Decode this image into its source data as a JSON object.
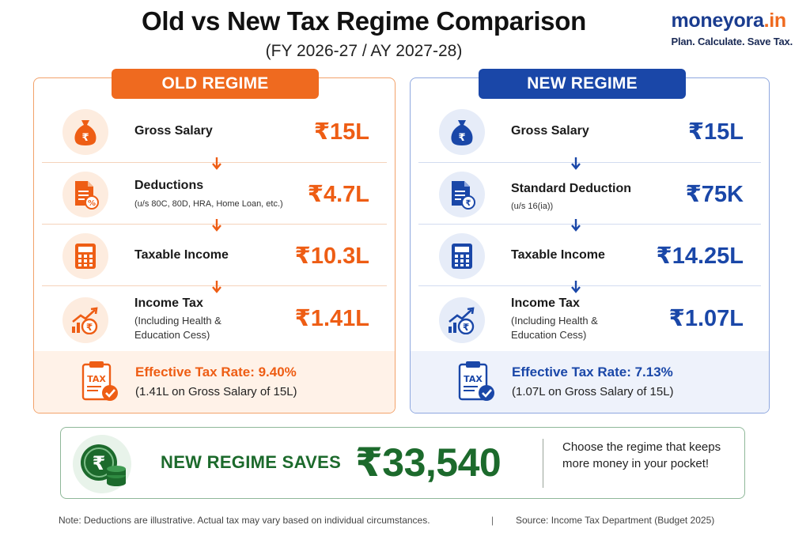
{
  "header": {
    "title": "Old vs New Tax Regime Comparison",
    "subtitle": "(FY 2026-27 / AY 2027-28)"
  },
  "brand": {
    "name": "moneyora",
    "tld": ".in",
    "tagline": "Plan. Calculate. Save Tax."
  },
  "old_regime": {
    "header": "OLD REGIME",
    "rows": [
      {
        "icon": "money-bag-icon",
        "label": "Gross Salary",
        "sub": "",
        "value": "₹15L"
      },
      {
        "icon": "document-percent-icon",
        "label": "Deductions",
        "sub": "(u/s 80C, 80D, HRA, Home Loan, etc.)",
        "value": "₹4.7L"
      },
      {
        "icon": "calculator-icon",
        "label": "Taxable Income",
        "sub": "",
        "value": "₹10.3L"
      },
      {
        "icon": "growth-chart-rupee-icon",
        "label": "Income Tax",
        "sub_line1": "(Including Health &",
        "sub_line2": "Education Cess)",
        "value": "₹1.41L"
      }
    ],
    "effective": {
      "icon": "tax-clipboard-icon",
      "rate": "Effective Tax Rate: 9.40%",
      "note": "(1.41L on Gross Salary of 15L)"
    }
  },
  "new_regime": {
    "header": "NEW REGIME",
    "rows": [
      {
        "icon": "money-bag-icon",
        "label": "Gross Salary",
        "sub": "",
        "value": "₹15L"
      },
      {
        "icon": "document-rupee-icon",
        "label": "Standard Deduction",
        "sub": "(u/s 16(ia))",
        "value": "₹75K"
      },
      {
        "icon": "calculator-icon",
        "label": "Taxable Income",
        "sub": "",
        "value": "₹14.25L"
      },
      {
        "icon": "growth-chart-rupee-icon",
        "label": "Income Tax",
        "sub_line1": "(Including Health &",
        "sub_line2": "Education Cess)",
        "value": "₹1.07L"
      }
    ],
    "effective": {
      "icon": "tax-clipboard-icon",
      "rate": "Effective Tax Rate: 7.13%",
      "note": "(1.07L on Gross Salary of 15L)"
    }
  },
  "savings": {
    "icon": "rupee-coin-stack-icon",
    "label": "NEW REGIME SAVES",
    "amount": "₹33,540",
    "message": "Choose the regime that keeps more money in your pocket!"
  },
  "footer": {
    "note": "Note: Deductions are illustrative. Actual tax may vary based on individual circumstances.",
    "separator": "|",
    "source": "Source: Income Tax Department (Budget 2025)"
  },
  "colors": {
    "old_accent": "#ef6a1f",
    "new_accent": "#1a47a8",
    "savings_green": "#1c6a2c"
  }
}
